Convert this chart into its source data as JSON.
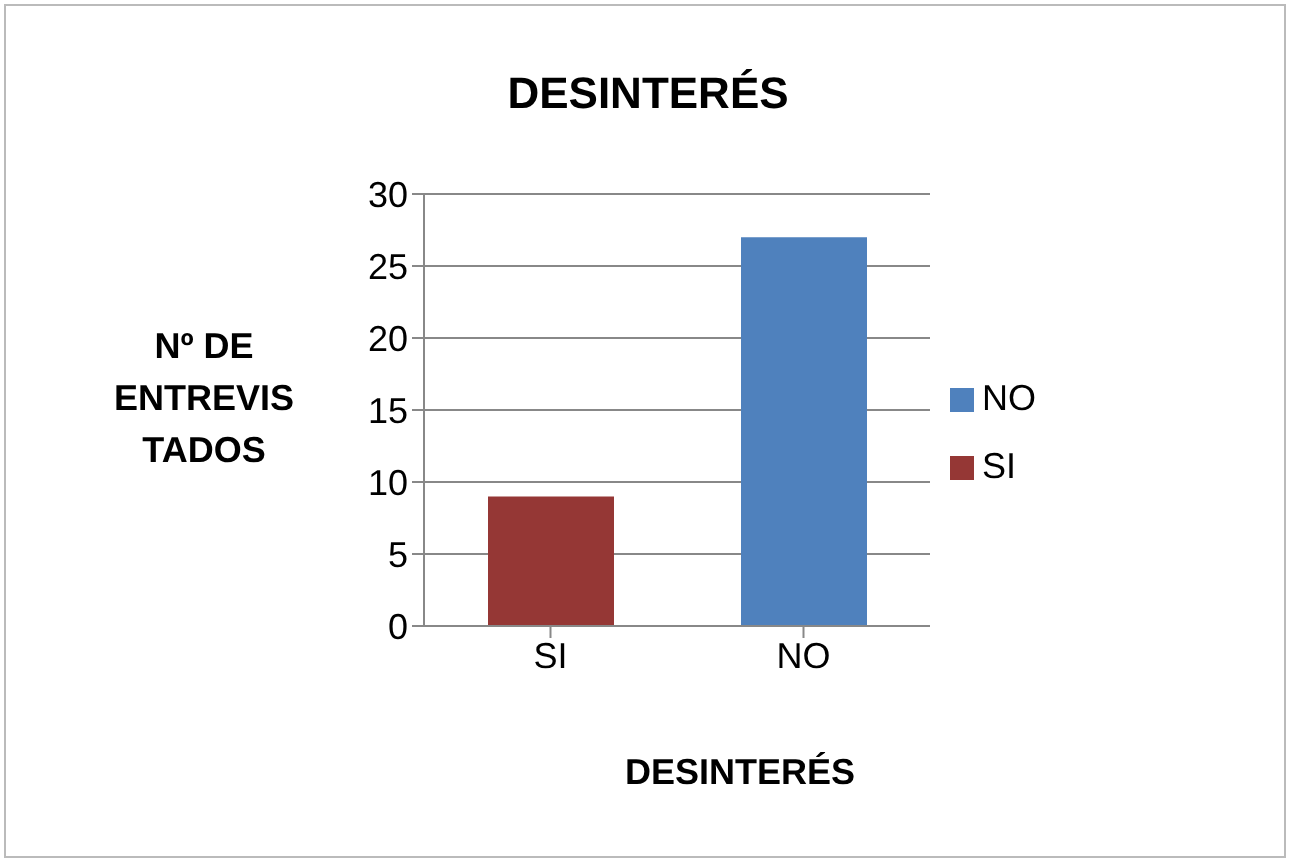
{
  "chart_data": {
    "type": "bar",
    "title": "DESINTERÉS",
    "xlabel": "DESINTERÉS",
    "ylabel": "Nº DE ENTREVISTADOS",
    "categories": [
      "SI",
      "NO"
    ],
    "series": [
      {
        "name": "SI",
        "color": "#953735",
        "values": [
          9,
          null
        ]
      },
      {
        "name": "NO",
        "color": "#4f81bd",
        "values": [
          null,
          27
        ]
      }
    ],
    "stacked": true,
    "ylim": [
      0,
      30
    ],
    "yticks": [
      0,
      5,
      10,
      15,
      20,
      25,
      30
    ],
    "grid": "y",
    "legend": "right"
  }
}
